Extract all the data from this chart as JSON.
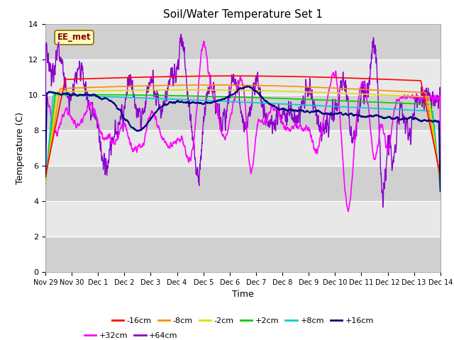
{
  "title": "Soil/Water Temperature Set 1",
  "xlabel": "Time",
  "ylabel": "Temperature (C)",
  "ylim": [
    0,
    14
  ],
  "yticks": [
    0,
    2,
    4,
    6,
    8,
    10,
    12,
    14
  ],
  "annotation": "EE_met",
  "annotation_color": "#8B0000",
  "annotation_bg": "#FFFFC0",
  "annotation_edge": "#8B7000",
  "series": {
    "-16cm": {
      "color": "#FF0000",
      "linewidth": 1.2,
      "zorder": 10
    },
    "-8cm": {
      "color": "#FF8C00",
      "linewidth": 1.2,
      "zorder": 9
    },
    "-2cm": {
      "color": "#DDDD00",
      "linewidth": 1.2,
      "zorder": 8
    },
    "+2cm": {
      "color": "#00CC00",
      "linewidth": 1.2,
      "zorder": 7
    },
    "+8cm": {
      "color": "#00CCCC",
      "linewidth": 1.2,
      "zorder": 6
    },
    "+16cm": {
      "color": "#000080",
      "linewidth": 1.5,
      "zorder": 11
    },
    "+32cm": {
      "color": "#FF00FF",
      "linewidth": 1.2,
      "zorder": 5
    },
    "+64cm": {
      "color": "#8B00CC",
      "linewidth": 1.0,
      "zorder": 4
    }
  },
  "xtick_labels": [
    "Nov 29",
    "Nov 30",
    "Dec 1",
    "Dec 2",
    "Dec 3",
    "Dec 4",
    "Dec 5",
    "Dec 6",
    "Dec 7",
    "Dec 8",
    "Dec 9",
    "Dec 10",
    "Dec 11",
    "Dec 12",
    "Dec 13",
    "Dec 14"
  ],
  "legend_order": [
    "-16cm",
    "-8cm",
    "-2cm",
    "+2cm",
    "+8cm",
    "+16cm",
    "+32cm",
    "+64cm"
  ],
  "plot_bg_light": "#E8E8E8",
  "plot_bg_dark": "#D0D0D0",
  "band_boundaries": [
    0,
    2,
    4,
    6,
    8,
    10,
    12,
    14
  ]
}
